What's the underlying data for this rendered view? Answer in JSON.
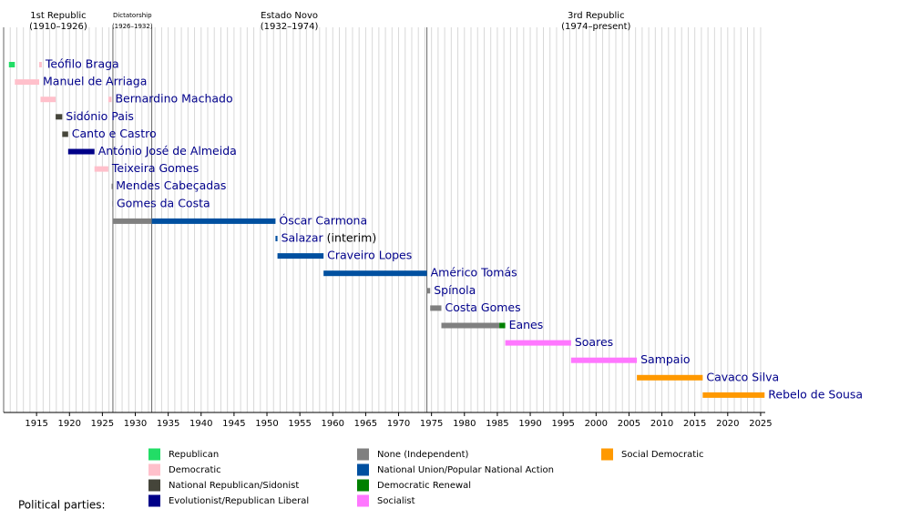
{
  "chart_data": {
    "type": "timeline",
    "xlim": [
      1910,
      2025.7
    ],
    "xticks": [
      1915,
      1920,
      1925,
      1930,
      1935,
      1940,
      1945,
      1950,
      1955,
      1960,
      1965,
      1970,
      1975,
      1980,
      1985,
      1990,
      1995,
      2000,
      2005,
      2010,
      2015,
      2020,
      2025
    ],
    "xgrid": [
      1911,
      1912,
      1913,
      1914,
      1915,
      1916,
      1917,
      1918,
      1919,
      1920,
      1921,
      1922,
      1923,
      1924,
      1925,
      1926,
      1927,
      1928,
      1929,
      1930,
      1931,
      1932,
      1933,
      1934,
      1935,
      1936,
      1937,
      1938,
      1939,
      1940,
      1941,
      1942,
      1943,
      1944,
      1945,
      1946,
      1947,
      1948,
      1949,
      1950,
      1951,
      1952,
      1953,
      1954,
      1955,
      1956,
      1957,
      1958,
      1959,
      1960,
      1961,
      1962,
      1963,
      1964,
      1965,
      1966,
      1967,
      1968,
      1969,
      1970,
      1971,
      1972,
      1973,
      1974,
      1975,
      1976,
      1977,
      1978,
      1979,
      1980,
      1981,
      1982,
      1983,
      1984,
      1985,
      1986,
      1987,
      1988,
      1989,
      1990,
      1991,
      1992,
      1993,
      1994,
      1995,
      1996,
      1997,
      1998,
      1999,
      2000,
      2001,
      2002,
      2003,
      2004,
      2005,
      2006,
      2007,
      2008,
      2009,
      2010,
      2011,
      2012,
      2013,
      2014,
      2015,
      2016,
      2017,
      2018,
      2019,
      2020,
      2021,
      2022,
      2023,
      2024,
      2025
    ],
    "era_lines": [
      1910,
      1926.6,
      1932.5,
      1974.3
    ],
    "eras": [
      {
        "name": "1st Republic",
        "period": "(1910–1926)"
      },
      {
        "name": "Dictatorship",
        "period": "(1926–1932)"
      },
      {
        "name": "Estado Novo",
        "period": "(1932–1974)"
      },
      {
        "name": "3rd Republic",
        "period": "(1974–present)"
      }
    ],
    "rows": [
      {
        "name": "Teófilo Braga",
        "segments": [
          {
            "start": 1910.8,
            "end": 1911.7,
            "color": "#22dd66"
          },
          {
            "start": 1915.4,
            "end": 1915.8,
            "color": "#ffc0cb"
          }
        ]
      },
      {
        "name": "Manuel de Arriaga",
        "segments": [
          {
            "start": 1911.7,
            "end": 1915.4,
            "color": "#ffc0cb"
          }
        ]
      },
      {
        "name": "Bernardino Machado",
        "segments": [
          {
            "start": 1915.6,
            "end": 1917.9,
            "color": "#ffc0cb"
          },
          {
            "start": 1925.9,
            "end": 1926.4,
            "color": "#ffc0cb"
          }
        ]
      },
      {
        "name": "Sidónio Pais",
        "segments": [
          {
            "start": 1917.9,
            "end": 1918.9,
            "color": "#45453a"
          }
        ]
      },
      {
        "name": "Canto e Castro",
        "segments": [
          {
            "start": 1918.9,
            "end": 1919.8,
            "color": "#45453a"
          }
        ]
      },
      {
        "name": "António José de Almeida",
        "segments": [
          {
            "start": 1919.8,
            "end": 1923.8,
            "color": "#000088"
          }
        ]
      },
      {
        "name": "Teixeira Gomes",
        "segments": [
          {
            "start": 1923.8,
            "end": 1925.9,
            "color": "#ffc0cb"
          }
        ]
      },
      {
        "name": "Mendes Cabeçadas",
        "segments": [
          {
            "start": 1926.4,
            "end": 1926.5,
            "color": "#808080"
          }
        ]
      },
      {
        "name": "Gomes da Costa",
        "segments": [
          {
            "start": 1926.5,
            "end": 1926.6,
            "color": "#808080"
          }
        ]
      },
      {
        "name": "Óscar Carmona",
        "segments": [
          {
            "start": 1926.6,
            "end": 1932.5,
            "color": "#808080"
          },
          {
            "start": 1932.5,
            "end": 1951.3,
            "color": "#0050a0"
          }
        ]
      },
      {
        "name": "Salazar",
        "note": "(interim)",
        "segments": [
          {
            "start": 1951.3,
            "end": 1951.6,
            "color": "#0050a0"
          }
        ]
      },
      {
        "name": "Craveiro Lopes",
        "segments": [
          {
            "start": 1951.6,
            "end": 1958.6,
            "color": "#0050a0"
          }
        ]
      },
      {
        "name": "Américo Tomás",
        "segments": [
          {
            "start": 1958.6,
            "end": 1974.3,
            "color": "#0050a0"
          }
        ]
      },
      {
        "name": "Spínola",
        "segments": [
          {
            "start": 1974.3,
            "end": 1974.8,
            "color": "#808080"
          }
        ]
      },
      {
        "name": "Costa Gomes",
        "segments": [
          {
            "start": 1974.8,
            "end": 1976.5,
            "color": "#808080"
          }
        ]
      },
      {
        "name": "Eanes",
        "segments": [
          {
            "start": 1976.5,
            "end": 1985.3,
            "color": "#808080"
          },
          {
            "start": 1985.3,
            "end": 1986.2,
            "color": "#008000"
          }
        ]
      },
      {
        "name": "Soares",
        "segments": [
          {
            "start": 1986.2,
            "end": 1996.2,
            "color": "#ff77ff"
          }
        ]
      },
      {
        "name": "Sampaio",
        "segments": [
          {
            "start": 1996.2,
            "end": 2006.2,
            "color": "#ff77ff"
          }
        ]
      },
      {
        "name": "Cavaco Silva",
        "segments": [
          {
            "start": 2006.2,
            "end": 2016.2,
            "color": "#ff9900"
          }
        ]
      },
      {
        "name": "Rebelo de Sousa",
        "segments": [
          {
            "start": 2016.2,
            "end": 2025.6,
            "color": "#ff9900"
          }
        ]
      }
    ],
    "legend_title": "Political parties:",
    "legend": [
      [
        {
          "name": "Republican",
          "color": "#22dd66"
        },
        {
          "name": "Democratic",
          "color": "#ffc0cb"
        },
        {
          "name": "National Republican/Sidonist",
          "color": "#45453a"
        },
        {
          "name": "Evolutionist/Republican Liberal",
          "color": "#000088"
        }
      ],
      [
        {
          "name": "None (Independent)",
          "color": "#808080"
        },
        {
          "name": "National Union/Popular National Action",
          "color": "#0050a0"
        },
        {
          "name": "Democratic Renewal",
          "color": "#008000"
        },
        {
          "name": "Socialist",
          "color": "#ff77ff"
        }
      ],
      [
        {
          "name": "Social Democratic",
          "color": "#ff9900"
        }
      ]
    ]
  }
}
